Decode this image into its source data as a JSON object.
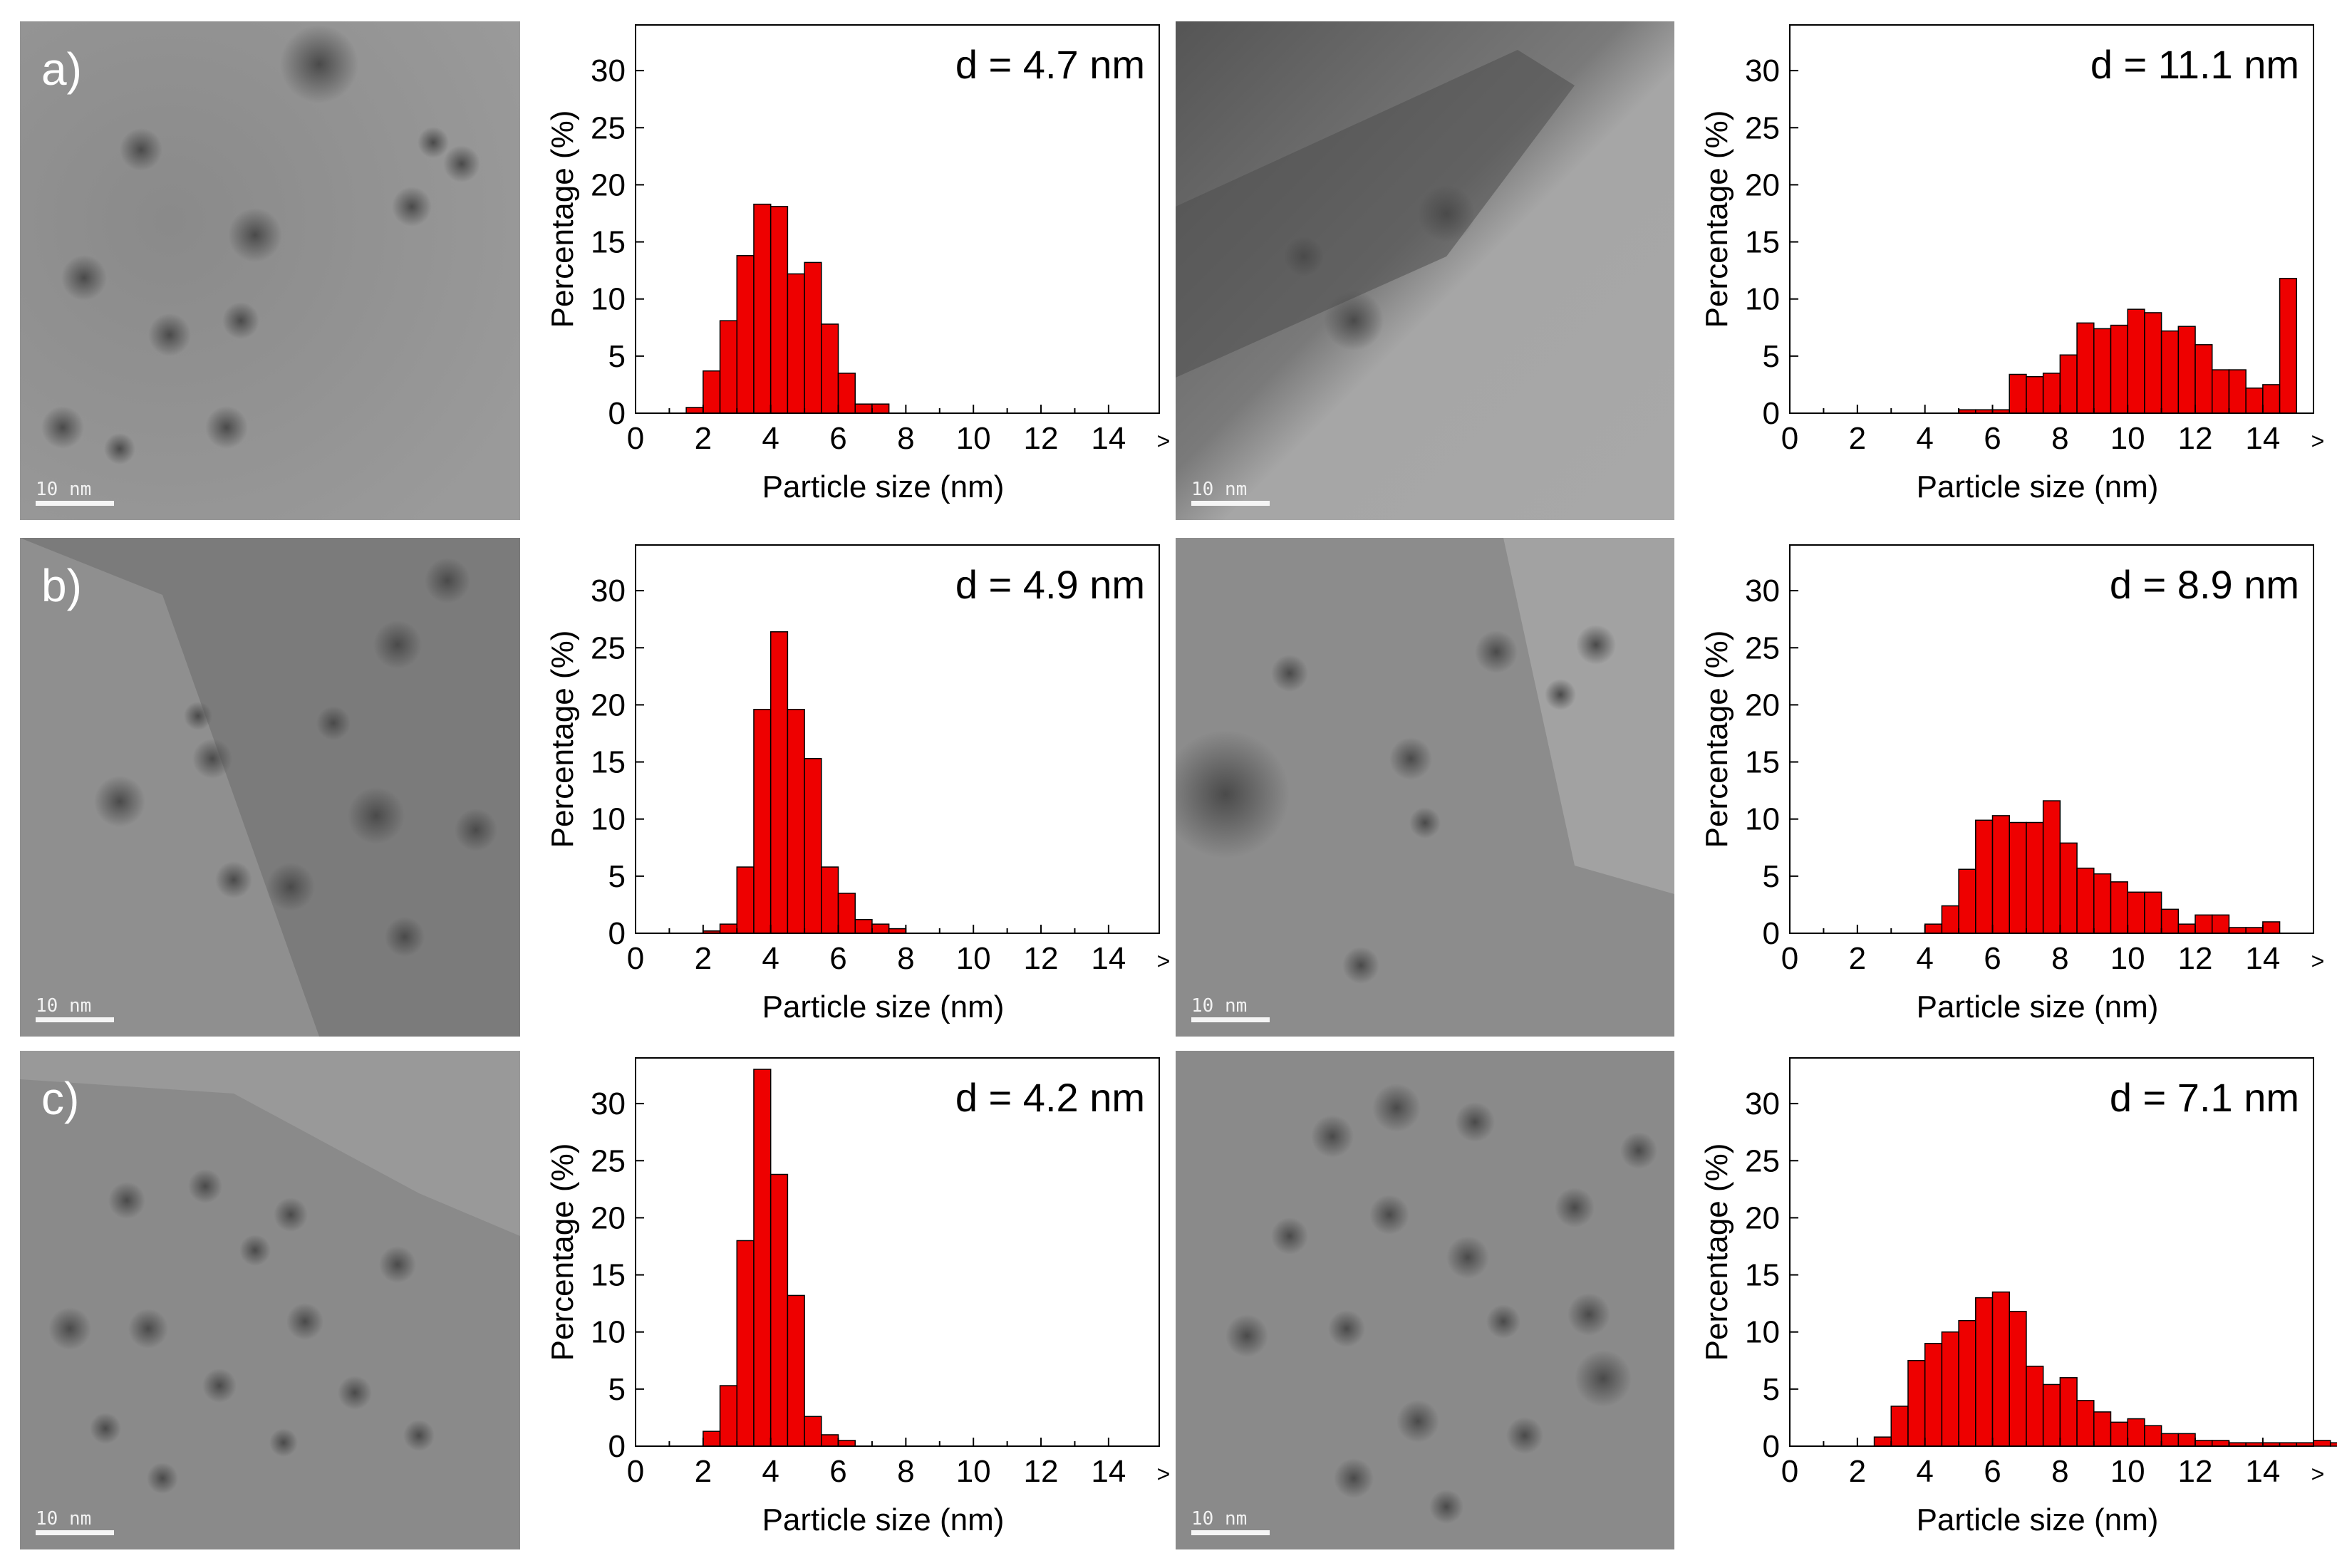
{
  "panel_labels": [
    "a)",
    "b)",
    "c)"
  ],
  "scale_bar_label": "10 nm",
  "colors": {
    "bar": "#ee0000",
    "bar_edge": "#000000"
  },
  "chart_data": [
    {
      "type": "bar",
      "panel": "a) left",
      "annotation": "d = 4.7 nm",
      "xlabel": "Particle size (nm)",
      "ylabel": "Percentage (%)",
      "x_ticks": [
        "0",
        "2",
        "4",
        "6",
        "8",
        "10",
        "12",
        "14",
        ">"
      ],
      "y_ticks": [
        "0",
        "5",
        "10",
        "15",
        "20",
        "25",
        "30"
      ],
      "xlim": [
        0,
        15.5
      ],
      "ylim": [
        0,
        34
      ],
      "bin_width": 0.5,
      "bin_start": 1.5,
      "values": [
        0.5,
        3.7,
        8.1,
        13.8,
        18.3,
        18.1,
        12.2,
        13.2,
        7.8,
        3.5,
        0.8,
        0.8
      ]
    },
    {
      "type": "bar",
      "panel": "a) right",
      "annotation": "d = 11.1 nm",
      "xlabel": "Particle size (nm)",
      "ylabel": "Percentage (%)",
      "x_ticks": [
        "0",
        "2",
        "4",
        "6",
        "8",
        "10",
        "12",
        "14",
        ">"
      ],
      "y_ticks": [
        "0",
        "5",
        "10",
        "15",
        "20",
        "25",
        "30"
      ],
      "xlim": [
        0,
        15.5
      ],
      "ylim": [
        0,
        34
      ],
      "bin_width": 0.5,
      "bin_start": 5.0,
      "values": [
        0.3,
        0.3,
        0.3,
        3.4,
        3.2,
        3.5,
        5.1,
        7.9,
        7.4,
        7.7,
        9.1,
        8.8,
        7.2,
        7.6,
        6.0,
        3.8,
        3.8,
        2.2,
        2.5,
        11.8
      ]
    },
    {
      "type": "bar",
      "panel": "b) left",
      "annotation": "d = 4.9 nm",
      "xlabel": "Particle size (nm)",
      "ylabel": "Percentage (%)",
      "x_ticks": [
        "0",
        "2",
        "4",
        "6",
        "8",
        "10",
        "12",
        "14",
        ">"
      ],
      "y_ticks": [
        "0",
        "5",
        "10",
        "15",
        "20",
        "25",
        "30"
      ],
      "xlim": [
        0,
        15.5
      ],
      "ylim": [
        0,
        34
      ],
      "bin_width": 0.5,
      "bin_start": 2.0,
      "values": [
        0.2,
        0.8,
        5.8,
        19.6,
        26.4,
        19.6,
        15.3,
        5.8,
        3.5,
        1.2,
        0.8,
        0.4
      ]
    },
    {
      "type": "bar",
      "panel": "b) right",
      "annotation": "d = 8.9 nm",
      "xlabel": "Particle size (nm)",
      "ylabel": "Percentage (%)",
      "x_ticks": [
        "0",
        "2",
        "4",
        "6",
        "8",
        "10",
        "12",
        "14",
        ">"
      ],
      "y_ticks": [
        "0",
        "5",
        "10",
        "15",
        "20",
        "25",
        "30"
      ],
      "xlim": [
        0,
        15.5
      ],
      "ylim": [
        0,
        34
      ],
      "bin_width": 0.5,
      "bin_start": 4.0,
      "values": [
        0.8,
        2.4,
        5.6,
        9.9,
        10.3,
        9.7,
        9.7,
        11.6,
        7.9,
        5.7,
        5.2,
        4.5,
        3.6,
        3.6,
        2.1,
        0.8,
        1.6,
        1.6,
        0.5,
        0.5,
        1.0
      ]
    },
    {
      "type": "bar",
      "panel": "c) left",
      "annotation": "d = 4.2 nm",
      "xlabel": "Particle size (nm)",
      "ylabel": "Percentage (%)",
      "x_ticks": [
        "0",
        "2",
        "4",
        "6",
        "8",
        "10",
        "12",
        "14",
        ">"
      ],
      "y_ticks": [
        "0",
        "5",
        "10",
        "15",
        "20",
        "25",
        "30"
      ],
      "xlim": [
        0,
        15.5
      ],
      "ylim": [
        0,
        34
      ],
      "bin_width": 0.5,
      "bin_start": 2.0,
      "values": [
        1.3,
        5.3,
        18.0,
        33.0,
        23.8,
        13.2,
        2.6,
        1.0,
        0.5
      ]
    },
    {
      "type": "bar",
      "panel": "c) right",
      "annotation": "d = 7.1 nm",
      "xlabel": "Particle size (nm)",
      "ylabel": "Percentage (%)",
      "x_ticks": [
        "0",
        "2",
        "4",
        "6",
        "8",
        "10",
        "12",
        "14",
        ">"
      ],
      "y_ticks": [
        "0",
        "5",
        "10",
        "15",
        "20",
        "25",
        "30"
      ],
      "xlim": [
        0,
        15.5
      ],
      "ylim": [
        0,
        34
      ],
      "bin_width": 0.5,
      "bin_start": 2.5,
      "values": [
        0.8,
        3.5,
        7.5,
        9.0,
        10.0,
        11.0,
        13.0,
        13.5,
        11.8,
        7.0,
        5.4,
        6.0,
        4.0,
        3.0,
        2.1,
        2.4,
        1.8,
        1.1,
        1.1,
        0.5,
        0.5,
        0.3,
        0.3,
        0.3,
        0.3,
        0.3,
        0.5,
        0.3
      ]
    }
  ]
}
